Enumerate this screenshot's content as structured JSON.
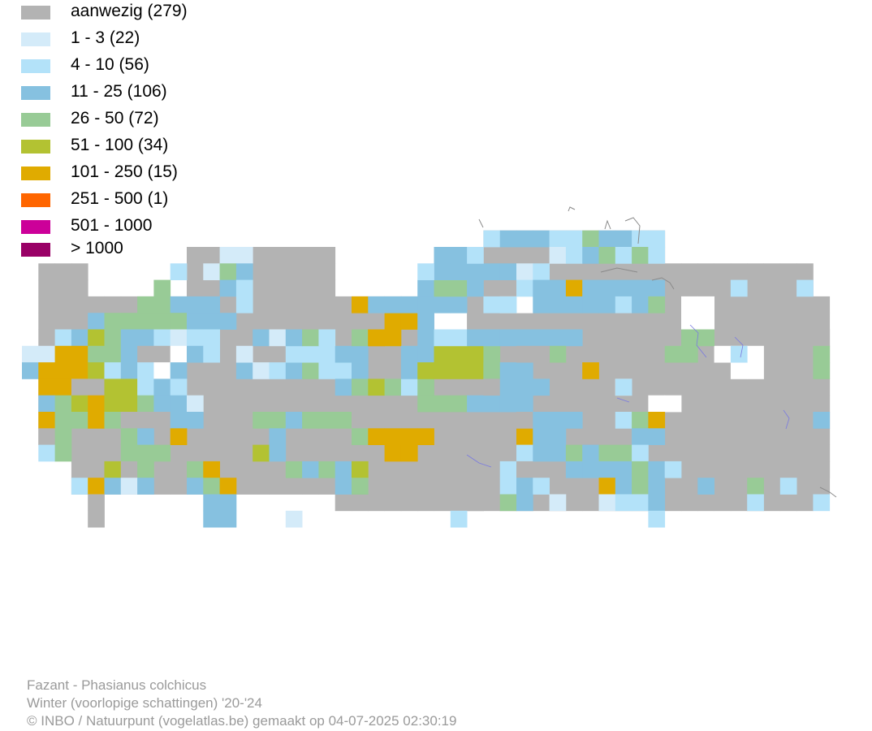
{
  "legend": [
    {
      "label": "aanwezig (279)",
      "color": "#b3b3b3"
    },
    {
      "label": "1 - 3 (22)",
      "color": "#d4ebf9"
    },
    {
      "label": "4 - 10 (56)",
      "color": "#b3e2f9"
    },
    {
      "label": "11 - 25 (106)",
      "color": "#86c1e0"
    },
    {
      "label": "26 - 50 (72)",
      "color": "#98cb96"
    },
    {
      "label": "51 - 100 (34)",
      "color": "#b3c232"
    },
    {
      "label": "101 - 250 (15)",
      "color": "#e0ab00"
    },
    {
      "label": "251 - 500 (1)",
      "color": "#ff6600"
    },
    {
      "label": "501 - 1000",
      "color": "#cc0099"
    },
    {
      "label": "> 1000",
      "color": "#990066"
    }
  ],
  "footer": {
    "species": "Fazant - Phasianus colchicus",
    "period": "Winter (voorlopige schattingen) '20-'24",
    "credit": "© INBO / Natuurpunt (vogelatlas.be) gemaakt op 04-07-2025 02:30:19"
  },
  "colors": {
    "background": "#ffffff",
    "footer_text": "#9a9a9a",
    "border_line": "#8a8a8a",
    "river": "#7a7ae0"
  }
}
